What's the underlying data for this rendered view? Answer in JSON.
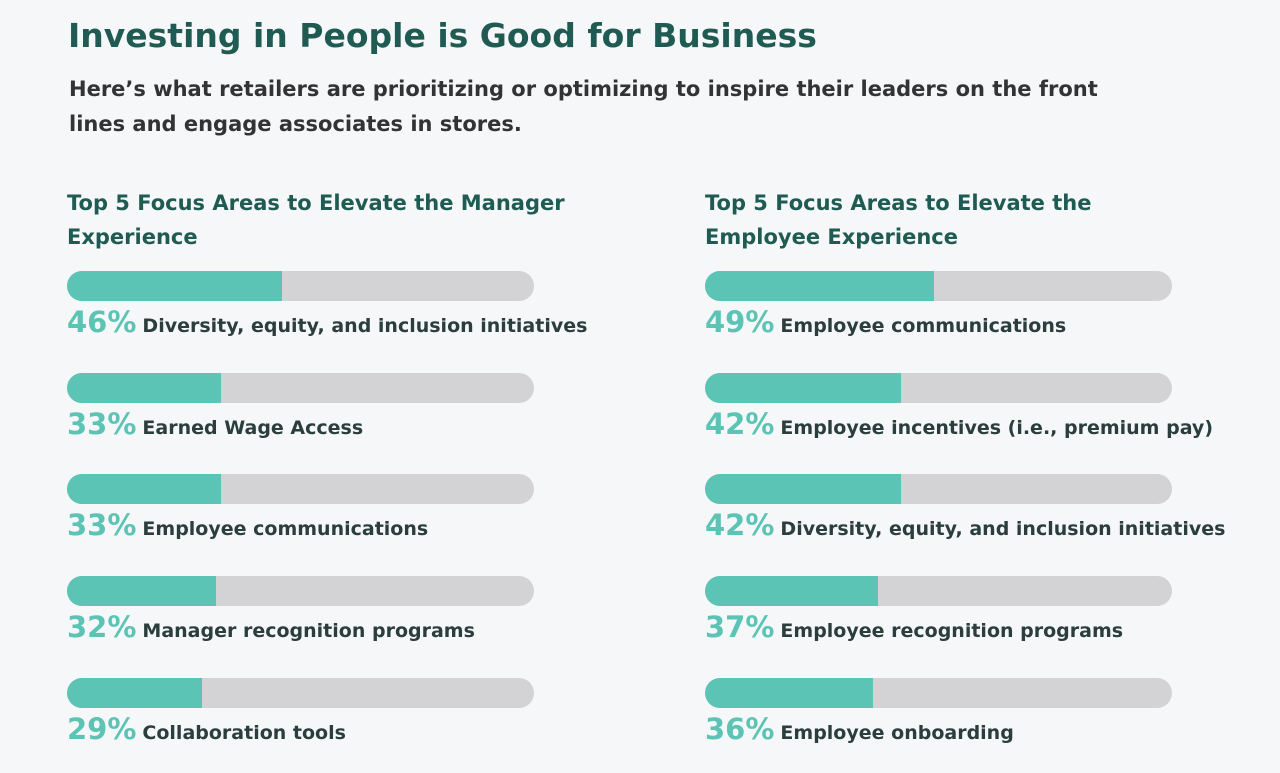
{
  "title": "Investing in People is Good for Business",
  "subtitle": "Here’s what retailers are prioritizing or optimizing to inspire their leaders on the front lines and engage associates in stores.",
  "chart_data": [
    {
      "type": "bar",
      "orientation": "horizontal",
      "title": "Top 5 Focus Areas to Elevate the Manager Experience",
      "categories": [
        "Diversity, equity, and inclusion initiatives",
        "Earned Wage Access",
        "Employee communications",
        "Manager recognition programs",
        "Collaboration tools"
      ],
      "values": [
        46,
        33,
        33,
        32,
        29
      ],
      "value_labels": [
        "46%",
        "33%",
        "33%",
        "32%",
        "29%"
      ],
      "xlim": [
        0,
        100
      ],
      "color": "#5cc4b4"
    },
    {
      "type": "bar",
      "orientation": "horizontal",
      "title": "Top 5 Focus Areas to Elevate the Employee Experience",
      "categories": [
        "Employee communications",
        "Employee incentives (i.e., premium pay)",
        "Diversity, equity, and inclusion initiatives",
        "Employee recognition programs",
        "Employee onboarding"
      ],
      "values": [
        49,
        42,
        42,
        37,
        36
      ],
      "value_labels": [
        "49%",
        "42%",
        "42%",
        "37%",
        "36%"
      ],
      "xlim": [
        0,
        100
      ],
      "color": "#5cc4b4"
    }
  ]
}
